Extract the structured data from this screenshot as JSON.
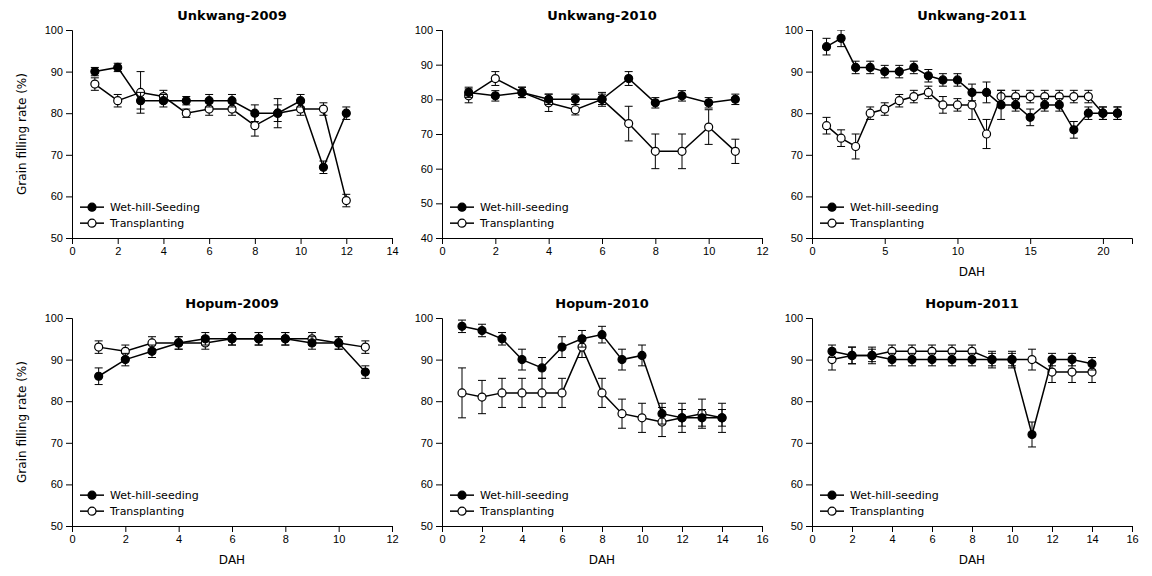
{
  "chart_data": [
    {
      "type": "line",
      "title": "Unkwang-2009",
      "ylabel": "Grain filling rate (%)",
      "xlim": [
        0,
        14
      ],
      "ylim": [
        50,
        100
      ],
      "xticks": [
        0,
        2,
        4,
        6,
        8,
        10,
        12,
        14
      ],
      "yticks": [
        50,
        60,
        70,
        80,
        90,
        100
      ],
      "legend": "lower left",
      "grid": false,
      "series": [
        {
          "name": "Wet-hill-Seeding",
          "color": "black",
          "marker": "circle",
          "line_style": "solid",
          "x": [
            1,
            2,
            3,
            4,
            5,
            6,
            7,
            8,
            9,
            10,
            11,
            12
          ],
          "values": [
            90,
            91,
            83,
            83,
            83,
            83,
            83,
            80,
            80,
            83,
            67,
            80
          ],
          "yerr": [
            1.0,
            1.0,
            2.0,
            1.5,
            1.0,
            1.5,
            1.5,
            2.0,
            2.0,
            1.5,
            1.5,
            1.5
          ]
        },
        {
          "name": "Transplanting",
          "color": "black",
          "marker": "circle-open",
          "line_style": "solid",
          "x": [
            1,
            2,
            3,
            4,
            5,
            6,
            7,
            8,
            9,
            10,
            11,
            12
          ],
          "values": [
            87,
            83,
            85,
            84,
            80,
            81,
            81,
            77,
            80,
            81,
            81,
            59
          ],
          "yerr": [
            1.5,
            1.5,
            5.0,
            1.5,
            1.0,
            1.5,
            1.5,
            2.5,
            3.5,
            1.5,
            1.5,
            1.5
          ]
        }
      ]
    },
    {
      "type": "line",
      "title": "Unkwang-2010",
      "xlim": [
        0,
        12
      ],
      "ylim": [
        40,
        100
      ],
      "xticks": [
        0,
        2,
        4,
        6,
        8,
        10,
        12
      ],
      "yticks": [
        40,
        50,
        60,
        70,
        80,
        90,
        100
      ],
      "legend": "lower left",
      "grid": false,
      "series": [
        {
          "name": "Wet-hill-seeding",
          "color": "black",
          "marker": "circle",
          "line_style": "solid",
          "x": [
            1,
            2,
            3,
            4,
            5,
            6,
            7,
            8,
            9,
            10,
            11
          ],
          "values": [
            82,
            81,
            82,
            80,
            80,
            80,
            86,
            79,
            81,
            79,
            80
          ],
          "yerr": [
            1.5,
            1.5,
            1.5,
            1.5,
            1.5,
            1.5,
            2.0,
            1.5,
            1.5,
            1.5,
            1.5
          ]
        },
        {
          "name": "Transplanting",
          "color": "black",
          "marker": "circle-open",
          "line_style": "solid",
          "x": [
            1,
            2,
            3,
            4,
            5,
            6,
            7,
            8,
            9,
            10,
            11
          ],
          "values": [
            81,
            86,
            82,
            79,
            77,
            80,
            73,
            65,
            65,
            72,
            65
          ],
          "yerr": [
            2.0,
            2.0,
            1.5,
            2.5,
            1.5,
            2.0,
            5.0,
            5.0,
            5.0,
            5.0,
            3.5
          ]
        }
      ]
    },
    {
      "type": "line",
      "title": "Unkwang-2011",
      "xlabel": "DAH",
      "xlim": [
        0,
        22
      ],
      "ylim": [
        50,
        100
      ],
      "xticks": [
        0,
        5,
        10,
        15,
        20
      ],
      "yticks": [
        50,
        60,
        70,
        80,
        90,
        100
      ],
      "legend": "lower left",
      "grid": false,
      "series": [
        {
          "name": "Wet-hill-seeding",
          "color": "black",
          "marker": "circle",
          "line_style": "solid",
          "x": [
            1,
            2,
            3,
            4,
            5,
            6,
            7,
            8,
            9,
            10,
            11,
            12,
            13,
            14,
            15,
            16,
            17,
            18,
            19,
            20,
            21
          ],
          "values": [
            96,
            98,
            91,
            91,
            90,
            90,
            91,
            89,
            88,
            88,
            85,
            85,
            82,
            82,
            79,
            82,
            82,
            76,
            80,
            80,
            80
          ],
          "yerr": [
            2.0,
            2.0,
            1.5,
            1.5,
            1.5,
            1.5,
            1.5,
            1.5,
            1.5,
            1.5,
            2.0,
            2.5,
            3.5,
            1.5,
            2.0,
            1.5,
            1.5,
            2.0,
            1.5,
            1.5,
            1.5
          ]
        },
        {
          "name": "Transplanting",
          "color": "black",
          "marker": "circle-open",
          "line_style": "solid",
          "x": [
            1,
            2,
            3,
            4,
            5,
            6,
            7,
            8,
            9,
            10,
            11,
            12,
            13,
            14,
            15,
            16,
            17,
            18,
            19,
            20,
            21
          ],
          "values": [
            77,
            74,
            72,
            80,
            81,
            83,
            84,
            85,
            82,
            82,
            82,
            75,
            84,
            84,
            84,
            84,
            84,
            84,
            84,
            80,
            80
          ],
          "yerr": [
            2.0,
            2.0,
            3.0,
            1.5,
            1.5,
            1.5,
            1.5,
            1.5,
            2.0,
            1.5,
            3.5,
            3.5,
            1.5,
            1.5,
            1.5,
            1.5,
            1.5,
            1.5,
            1.5,
            1.5,
            1.5
          ]
        }
      ]
    },
    {
      "type": "line",
      "title": "Hopum-2009",
      "xlabel": "DAH",
      "ylabel": "Grain filling rate (%)",
      "xlim": [
        0,
        12
      ],
      "ylim": [
        50,
        100
      ],
      "xticks": [
        0,
        2,
        4,
        6,
        8,
        10,
        12
      ],
      "yticks": [
        50,
        60,
        70,
        80,
        90,
        100
      ],
      "legend": "lower left",
      "grid": false,
      "series": [
        {
          "name": "Wet-hill-seeding",
          "color": "black",
          "marker": "circle",
          "line_style": "solid",
          "x": [
            1,
            2,
            3,
            4,
            5,
            6,
            7,
            8,
            9,
            10,
            11
          ],
          "values": [
            86,
            90,
            92,
            94,
            95,
            95,
            95,
            95,
            94,
            94,
            87
          ],
          "yerr": [
            2.0,
            1.5,
            1.5,
            1.5,
            1.5,
            1.5,
            1.5,
            1.5,
            1.5,
            1.5,
            1.5
          ]
        },
        {
          "name": "Transplanting",
          "color": "black",
          "marker": "circle-open",
          "line_style": "solid",
          "x": [
            1,
            2,
            3,
            4,
            5,
            6,
            7,
            8,
            9,
            10,
            11
          ],
          "values": [
            93,
            92,
            94,
            94,
            94,
            95,
            95,
            95,
            95,
            94,
            93
          ],
          "yerr": [
            1.5,
            1.5,
            1.5,
            1.5,
            1.5,
            1.5,
            1.5,
            1.5,
            1.5,
            1.5,
            1.5
          ]
        }
      ]
    },
    {
      "type": "line",
      "title": "Hopum-2010",
      "xlabel": "DAH",
      "xlim": [
        0,
        16
      ],
      "ylim": [
        50,
        100
      ],
      "xticks": [
        0,
        2,
        4,
        6,
        8,
        10,
        12,
        14,
        16
      ],
      "yticks": [
        50,
        60,
        70,
        80,
        90,
        100
      ],
      "legend": "lower left",
      "grid": false,
      "series": [
        {
          "name": "Wet-hill-seeding",
          "color": "black",
          "marker": "circle",
          "line_style": "solid",
          "x": [
            1,
            2,
            3,
            4,
            5,
            6,
            7,
            8,
            9,
            10,
            11,
            12,
            13,
            14
          ],
          "values": [
            98,
            97,
            95,
            90,
            88,
            93,
            95,
            96,
            90,
            91,
            77,
            76,
            76,
            76
          ],
          "yerr": [
            1.5,
            1.5,
            1.5,
            2.5,
            2.5,
            2.5,
            2.0,
            2.0,
            2.5,
            2.5,
            2.5,
            2.0,
            2.0,
            2.0
          ]
        },
        {
          "name": "Transplanting",
          "color": "black",
          "marker": "circle-open",
          "line_style": "solid",
          "x": [
            1,
            2,
            3,
            4,
            5,
            6,
            7,
            8,
            9,
            10,
            11,
            12,
            13,
            14
          ],
          "values": [
            82,
            81,
            82,
            82,
            82,
            82,
            93,
            82,
            77,
            76,
            75,
            76,
            77,
            76
          ],
          "yerr": [
            6.0,
            4.0,
            3.5,
            3.5,
            3.5,
            3.5,
            2.5,
            3.5,
            3.5,
            3.5,
            3.5,
            3.5,
            3.5,
            3.5
          ]
        }
      ]
    },
    {
      "type": "line",
      "title": "Hopum-2011",
      "xlabel": "DAH",
      "xlim": [
        0,
        16
      ],
      "ylim": [
        50,
        100
      ],
      "xticks": [
        0,
        2,
        4,
        6,
        8,
        10,
        12,
        14,
        16
      ],
      "yticks": [
        50,
        60,
        70,
        80,
        90,
        100
      ],
      "legend": "lower left",
      "grid": false,
      "series": [
        {
          "name": "Wet-hill-seeding",
          "color": "black",
          "marker": "circle",
          "line_style": "solid",
          "x": [
            1,
            2,
            3,
            4,
            5,
            6,
            7,
            8,
            9,
            10,
            11,
            12,
            13,
            14
          ],
          "values": [
            92,
            91,
            91,
            90,
            90,
            90,
            90,
            90,
            90,
            90,
            72,
            90,
            90,
            89
          ],
          "yerr": [
            1.5,
            2.0,
            1.5,
            1.5,
            1.5,
            1.5,
            1.5,
            1.5,
            1.5,
            1.5,
            3.0,
            1.5,
            1.5,
            1.5
          ]
        },
        {
          "name": "Transplanting",
          "color": "black",
          "marker": "circle-open",
          "line_style": "solid",
          "x": [
            1,
            2,
            3,
            4,
            5,
            6,
            7,
            8,
            9,
            10,
            11,
            12,
            13,
            14
          ],
          "values": [
            90,
            91,
            91,
            92,
            92,
            92,
            92,
            92,
            90,
            90,
            90,
            87,
            87,
            87
          ],
          "yerr": [
            2.5,
            2.0,
            2.0,
            1.5,
            1.5,
            1.5,
            1.5,
            1.5,
            2.0,
            2.0,
            2.5,
            2.5,
            2.5,
            2.5
          ]
        }
      ]
    }
  ]
}
